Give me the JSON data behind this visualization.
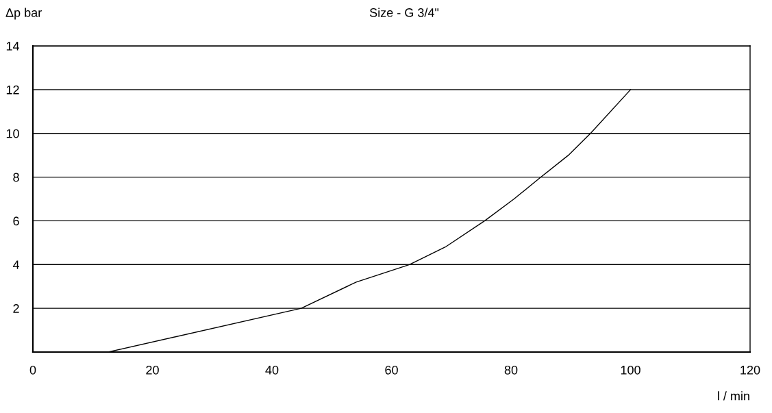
{
  "chart_data": {
    "type": "line",
    "title": "Size - G 3/4\"",
    "xlabel": "l / min",
    "ylabel": "Δp bar",
    "x": [
      12.6,
      44.9,
      54.1,
      63.0,
      69.0,
      75.6,
      80.5,
      85.0,
      89.6,
      93.3,
      100.0
    ],
    "series": [
      {
        "color": "#000000",
        "values": [
          0,
          2,
          3.2,
          4.0,
          4.8,
          6,
          7,
          8,
          9,
          10,
          12
        ]
      }
    ],
    "xlim": [
      0,
      120
    ],
    "xticks": [
      0,
      20,
      40,
      60,
      80,
      100,
      120
    ],
    "ylim": [
      0,
      14
    ],
    "yticks": [
      {
        "value": 0,
        "label": null
      },
      2,
      4,
      6,
      8,
      10,
      12,
      14
    ],
    "grid": "y",
    "legend": false,
    "marker": "none",
    "line_style": "solid"
  }
}
